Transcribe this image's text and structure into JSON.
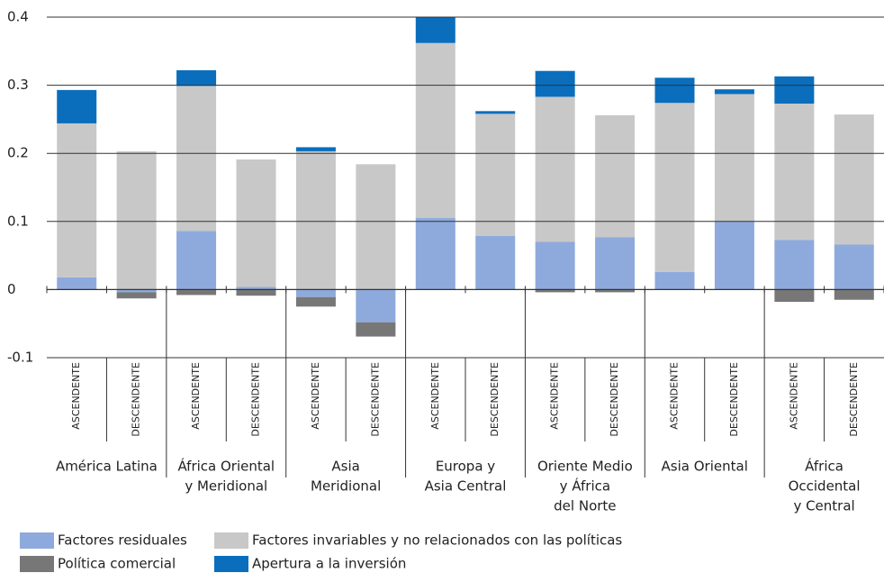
{
  "chart_data": {
    "type": "stacked_bar",
    "categories": [
      "ASCENDENTE",
      "DESCENDENTE",
      "ASCENDENTE",
      "DESCENDENTE",
      "ASCENDENTE",
      "DESCENDENTE",
      "ASCENDENTE",
      "DESCENDENTE",
      "ASCENDENTE",
      "DESCENDENTE",
      "ASCENDENTE",
      "DESCENDENTE",
      "ASCENDENTE",
      "DESCENDENTE"
    ],
    "groups": [
      [
        "América Latina"
      ],
      [
        "África Oriental",
        "y Meridional"
      ],
      [
        "Asia",
        "Meridional"
      ],
      [
        "Europa y",
        "Asia Central"
      ],
      [
        "Oriente Medio",
        "y África",
        "del Norte"
      ],
      [
        "Asia Oriental"
      ],
      [
        "África",
        "Occidental",
        "y Central"
      ]
    ],
    "series": [
      {
        "name": "Factores residuales",
        "color": "#8eaadc",
        "values": [
          0.018,
          -0.004,
          0.086,
          0.004,
          -0.011,
          -0.048,
          0.105,
          0.079,
          0.07,
          0.077,
          0.026,
          0.1,
          0.073,
          0.066
        ]
      },
      {
        "name": "Factores invariables y no relacionados con las políticas",
        "color": "#c8c8c8",
        "values": [
          0.226,
          0.203,
          0.213,
          0.187,
          0.203,
          0.184,
          0.257,
          0.179,
          0.213,
          0.179,
          0.248,
          0.187,
          0.2,
          0.191
        ]
      },
      {
        "name": "Política comercial",
        "color": "#777777",
        "values": [
          0,
          -0.009,
          -0.008,
          -0.009,
          -0.014,
          -0.021,
          0,
          0,
          -0.004,
          -0.004,
          0,
          0,
          -0.018,
          -0.015
        ]
      },
      {
        "name": "Apertura a la inversión",
        "color": "#0a6ebd",
        "values": [
          0.049,
          0,
          0.023,
          0,
          0.006,
          0,
          0.038,
          0.004,
          0.038,
          0,
          0.037,
          0.007,
          0.04,
          0
        ]
      }
    ],
    "ylim": [
      -0.1,
      0.4
    ],
    "yticks": [
      -0.1,
      0,
      0.1,
      0.2,
      0.3,
      0.4
    ],
    "grid": true
  }
}
